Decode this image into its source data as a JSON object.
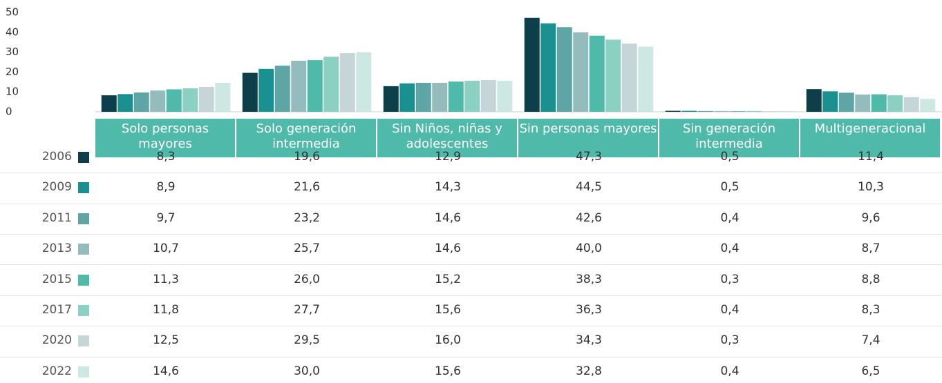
{
  "chart_data": {
    "type": "bar",
    "categories": [
      "Solo personas mayores",
      "Solo generación intermedia",
      "Sin Niños, niñas y adolescentes",
      "Sin personas mayores",
      "Sin generación intermedia",
      "Multigeneracional"
    ],
    "ylim": [
      0,
      50
    ],
    "yticks": [
      0,
      10,
      20,
      30,
      40,
      50
    ],
    "series": [
      {
        "name": "2006",
        "color": "#0d3f4a",
        "values": [
          8.3,
          19.6,
          12.9,
          47.3,
          0.5,
          11.4
        ],
        "value_labels": [
          "8,3",
          "19,6",
          "12,9",
          "47,3",
          "0,5",
          "11,4"
        ]
      },
      {
        "name": "2009",
        "color": "#1a9090",
        "values": [
          8.9,
          21.6,
          14.3,
          44.5,
          0.5,
          10.3
        ],
        "value_labels": [
          "8,9",
          "21,6",
          "14,3",
          "44,5",
          "0,5",
          "10,3"
        ]
      },
      {
        "name": "2011",
        "color": "#5fa5a5",
        "values": [
          9.7,
          23.2,
          14.6,
          42.6,
          0.4,
          9.6
        ],
        "value_labels": [
          "9,7",
          "23,2",
          "14,6",
          "42,6",
          "0,4",
          "9,6"
        ]
      },
      {
        "name": "2013",
        "color": "#94bcbc",
        "values": [
          10.7,
          25.7,
          14.6,
          40.0,
          0.4,
          8.7
        ],
        "value_labels": [
          "10,7",
          "25,7",
          "14,6",
          "40,0",
          "0,4",
          "8,7"
        ]
      },
      {
        "name": "2015",
        "color": "#4fbaa9",
        "values": [
          11.3,
          26.0,
          15.2,
          38.3,
          0.3,
          8.8
        ],
        "value_labels": [
          "11,3",
          "26,0",
          "15,2",
          "38,3",
          "0,3",
          "8,8"
        ]
      },
      {
        "name": "2017",
        "color": "#8ccfc3",
        "values": [
          11.8,
          27.7,
          15.6,
          36.3,
          0.4,
          8.3
        ],
        "value_labels": [
          "11,8",
          "27,7",
          "15,6",
          "36,3",
          "0,4",
          "8,3"
        ]
      },
      {
        "name": "2020",
        "color": "#c5d5d8",
        "values": [
          12.5,
          29.5,
          16.0,
          34.3,
          0.3,
          7.4
        ],
        "value_labels": [
          "12,5",
          "29,5",
          "16,0",
          "34,3",
          "0,3",
          "7,4"
        ]
      },
      {
        "name": "2022",
        "color": "#cde8e3",
        "values": [
          14.6,
          30.0,
          15.6,
          32.8,
          0.4,
          6.5
        ],
        "value_labels": [
          "14,6",
          "30,0",
          "15,6",
          "32,8",
          "0,4",
          "6,5"
        ]
      }
    ]
  }
}
